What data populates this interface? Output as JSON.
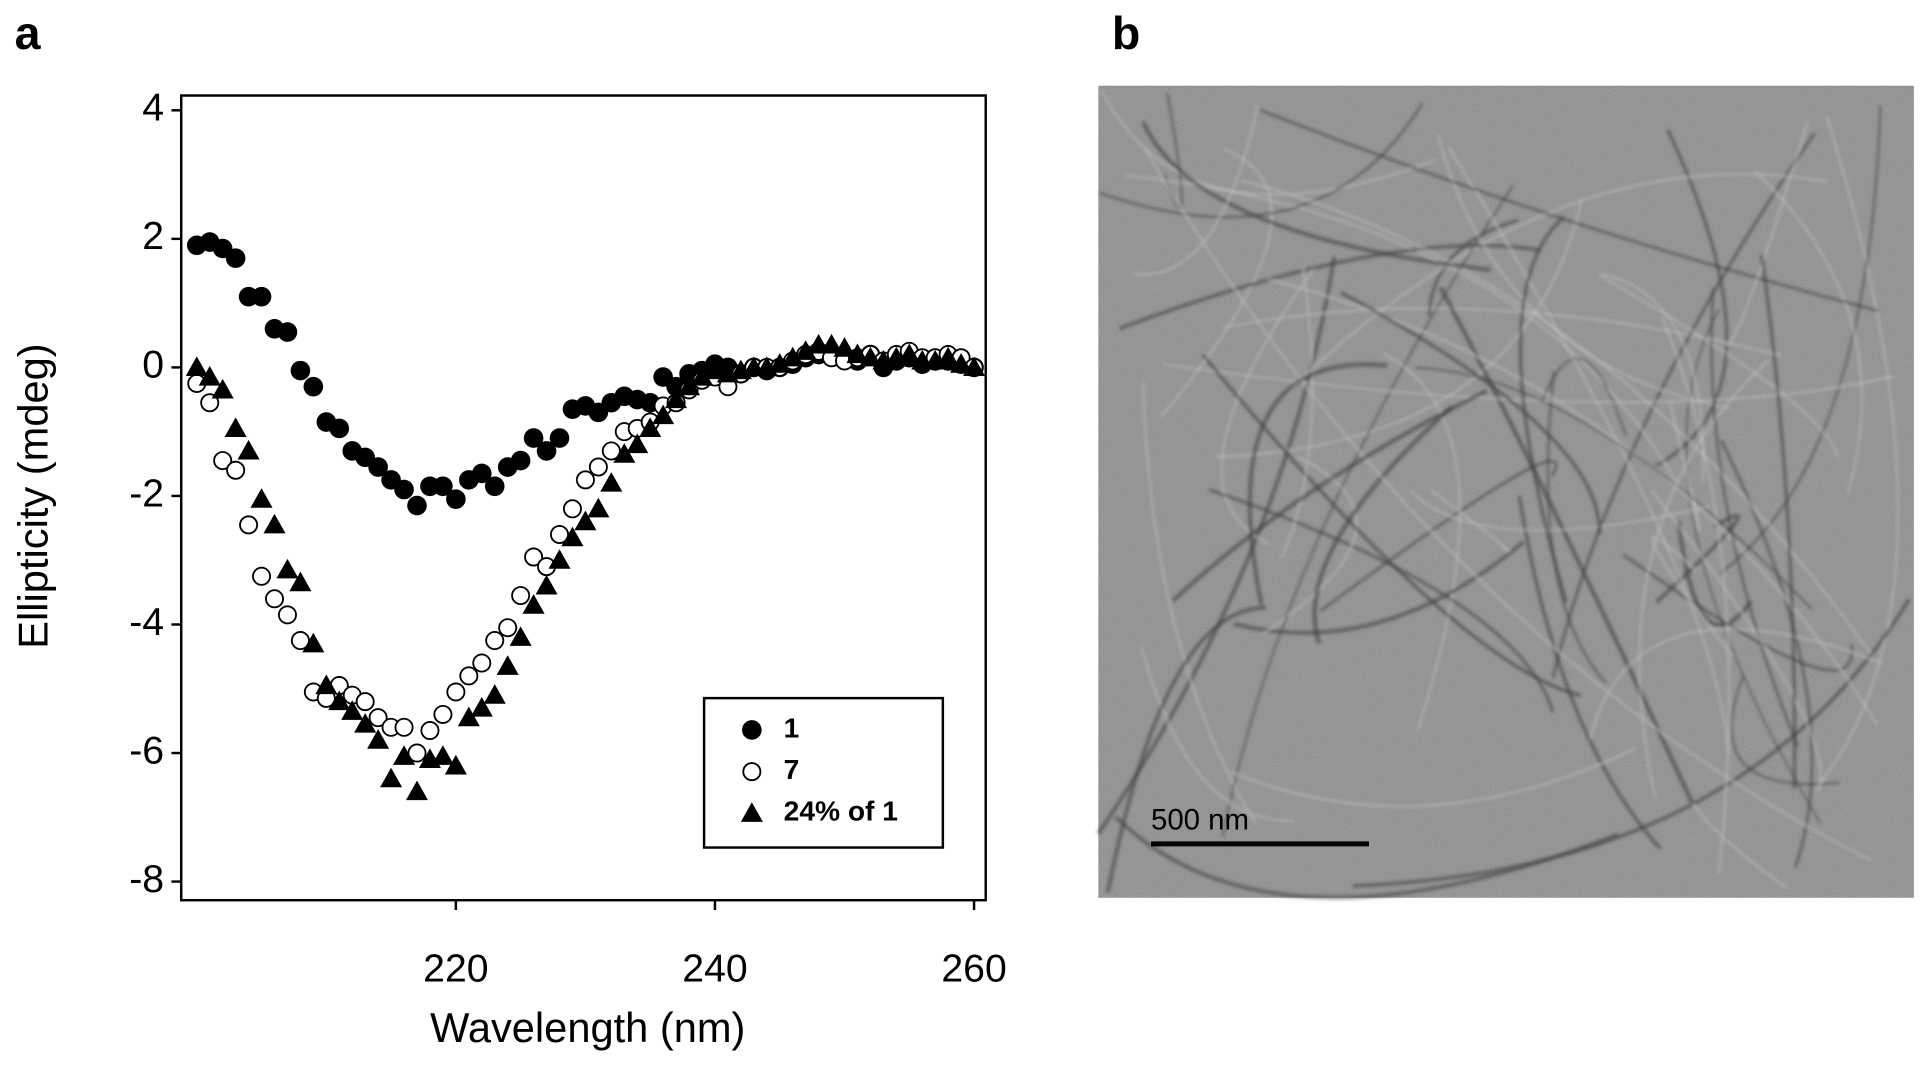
{
  "chart_data": {
    "type": "scatter",
    "panel_label": "a",
    "x_label": "Wavelength (nm)",
    "y_label": "Ellipticity (mdeg)",
    "x": [
      200,
      201,
      202,
      203,
      204,
      205,
      206,
      207,
      208,
      209,
      210,
      211,
      212,
      213,
      214,
      215,
      216,
      217,
      218,
      219,
      220,
      221,
      222,
      223,
      224,
      225,
      226,
      227,
      228,
      229,
      230,
      231,
      232,
      233,
      234,
      235,
      236,
      237,
      238,
      239,
      240,
      241,
      242,
      243,
      244,
      245,
      246,
      247,
      248,
      249,
      250,
      251,
      252,
      253,
      254,
      255,
      256,
      257,
      258,
      259,
      260
    ],
    "series": [
      {
        "name": "1",
        "color": "#000000",
        "marker": "circle-filled",
        "values": [
          1.9,
          1.95,
          1.85,
          1.7,
          1.1,
          1.1,
          0.6,
          0.55,
          -0.05,
          -0.3,
          -0.85,
          -0.95,
          -1.3,
          -1.4,
          -1.55,
          -1.75,
          -1.9,
          -2.15,
          -1.85,
          -1.85,
          -2.05,
          -1.75,
          -1.65,
          -1.85,
          -1.55,
          -1.45,
          -1.1,
          -1.3,
          -1.1,
          -0.65,
          -0.6,
          -0.7,
          -0.55,
          -0.45,
          -0.5,
          -0.55,
          -0.15,
          -0.3,
          -0.1,
          -0.05,
          0.05,
          0,
          -0.1,
          0,
          -0.05,
          0,
          0.05,
          0.15,
          0.2,
          0.2,
          0.15,
          0.1,
          0.2,
          0,
          0.1,
          0.15,
          0.05,
          0.1,
          0.1,
          0.05,
          0
        ]
      },
      {
        "name": "7",
        "color": "#000000",
        "marker": "circle-open",
        "values": [
          -0.25,
          -0.55,
          -1.45,
          -1.6,
          -2.45,
          -3.25,
          -3.6,
          -3.85,
          -4.25,
          -5.05,
          -5.15,
          -4.95,
          -5.1,
          -5.2,
          -5.45,
          -5.6,
          -5.6,
          -6,
          -5.65,
          -5.4,
          -5.05,
          -4.8,
          -4.6,
          -4.25,
          -4.05,
          -3.55,
          -2.95,
          -3.1,
          -2.6,
          -2.2,
          -1.75,
          -1.55,
          -1.3,
          -1,
          -0.95,
          -0.85,
          -0.6,
          -0.55,
          -0.35,
          -0.2,
          -0.15,
          -0.3,
          -0.1,
          0,
          0,
          0,
          0.1,
          0.2,
          0.25,
          0.15,
          0.1,
          0.15,
          0.2,
          0.1,
          0.2,
          0.25,
          0.15,
          0.15,
          0.2,
          0.15,
          0
        ]
      },
      {
        "name": "24% of 1",
        "color": "#000000",
        "marker": "triangle-filled",
        "values": [
          0,
          -0.15,
          -0.35,
          -0.95,
          -1.3,
          -2.05,
          -2.45,
          -3.15,
          -3.35,
          -4.3,
          -4.95,
          -5.2,
          -5.35,
          -5.55,
          -5.8,
          -6.4,
          -6.05,
          -6.6,
          -6.1,
          -6.05,
          -6.2,
          -5.45,
          -5.3,
          -5.1,
          -4.65,
          -4.2,
          -3.7,
          -3.4,
          -3,
          -2.65,
          -2.4,
          -2.2,
          -1.8,
          -1.35,
          -1.2,
          -0.95,
          -0.75,
          -0.5,
          -0.3,
          -0.15,
          -0.05,
          -0.1,
          -0.05,
          0,
          0,
          0.05,
          0.15,
          0.25,
          0.35,
          0.35,
          0.3,
          0.2,
          0.15,
          0.1,
          0.15,
          0.2,
          0.1,
          0.1,
          0.15,
          0.05,
          0
        ]
      }
    ],
    "xlim": [
      198.8,
      260.9
    ],
    "xticks": [
      220,
      240,
      260
    ],
    "ylim": [
      -8.29,
      4.23
    ],
    "yticks": [
      4,
      2,
      0,
      -2,
      -4,
      -6,
      -8
    ],
    "legend": "lower-right"
  },
  "image_panel": {
    "panel_label": "b",
    "scale_bar_label": "500 nm"
  }
}
